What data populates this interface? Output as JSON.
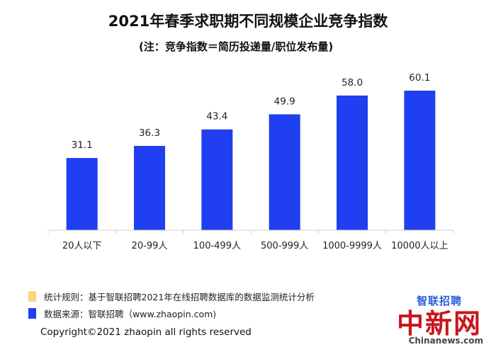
{
  "title": "2021年春季求职期不同规模企业竞争指数",
  "subtitle": "(注：竞争指数＝简历投递量/职位发布量)",
  "chart_data": {
    "type": "bar",
    "categories": [
      "20人以下",
      "20-99人",
      "100-499人",
      "500-999人",
      "1000-9999人",
      "10000人以上"
    ],
    "values": [
      31.1,
      36.3,
      43.4,
      49.9,
      58.0,
      60.1
    ],
    "value_labels": [
      "31.1",
      "36.3",
      "43.4",
      "49.9",
      "58.0",
      "60.1"
    ],
    "bar_color": "#1f3ff0",
    "ylim": [
      0,
      65
    ],
    "grid": false,
    "legend": "none"
  },
  "notes": [
    {
      "text": "统计规则：基于智联招聘2021年在线招聘数据库的数据监测统计分析",
      "color": "#f5d77a"
    },
    {
      "text": "数据来源：智联招聘（www.zhaopin.com)",
      "color": "#1f3ff0"
    }
  ],
  "copyright": "Copyright©2021 zhaopin all rights reserved",
  "watermark": {
    "logo_text": "智联招聘",
    "big_text": "中新网",
    "site_text": "Chinanews.com"
  }
}
